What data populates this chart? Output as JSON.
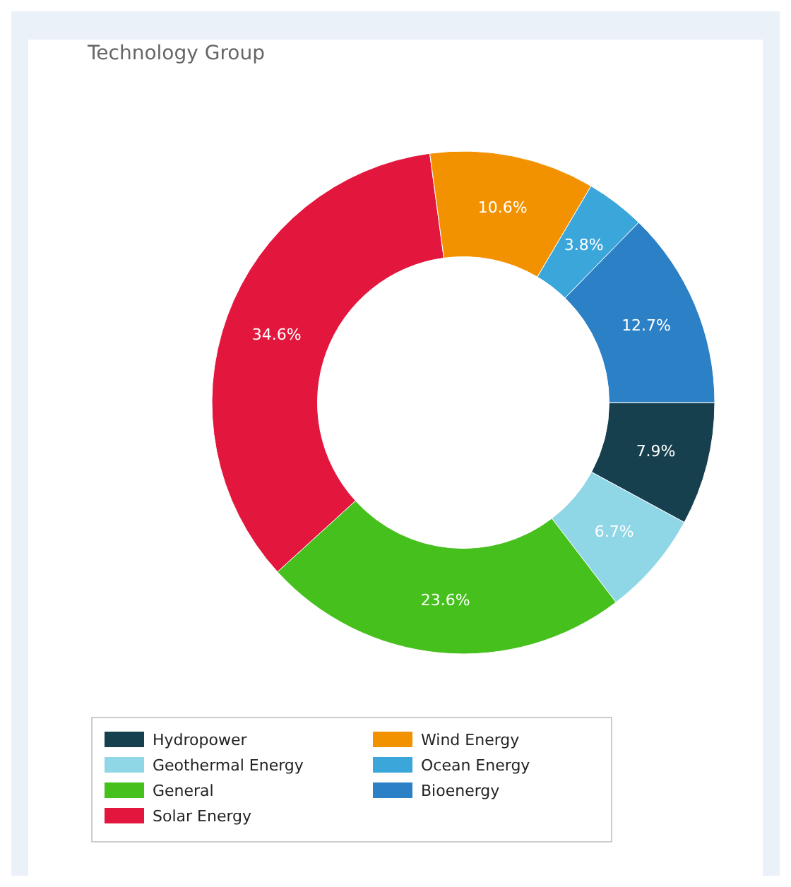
{
  "chart_data": {
    "type": "donut",
    "title": "Technology Group",
    "categories": [
      "Hydropower",
      "Geothermal Energy",
      "General",
      "Solar Energy",
      "Wind Energy",
      "Ocean Energy",
      "Bioenergy"
    ],
    "values": [
      7.9,
      6.7,
      23.6,
      34.6,
      10.6,
      3.8,
      12.7
    ],
    "colors": [
      "#17404f",
      "#8fd6e6",
      "#45c01c",
      "#e3173e",
      "#f39200",
      "#3aa6da",
      "#2b80c6"
    ],
    "value_labels": [
      "7.9%",
      "6.7%",
      "23.6%",
      "34.6%",
      "10.6%",
      "3.8%",
      "12.7%"
    ],
    "legend": "bottom"
  }
}
